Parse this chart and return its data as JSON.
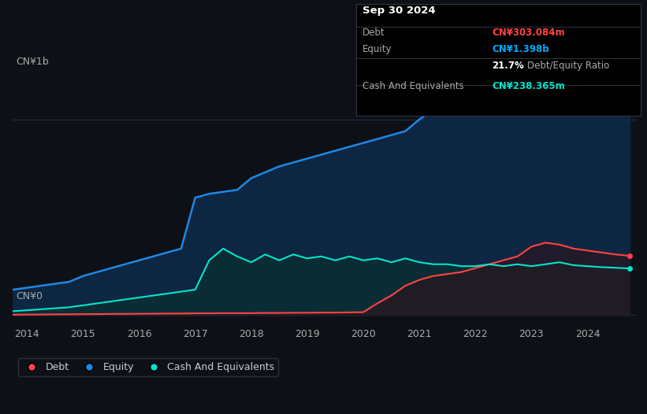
{
  "background_color": "#0d1117",
  "plot_bg_color": "#0d1117",
  "title_box": {
    "date": "Sep 30 2024",
    "debt_label": "Debt",
    "debt_value": "CN¥303.084m",
    "equity_label": "Equity",
    "equity_value": "CN¥1.398b",
    "ratio_value": "21.7%",
    "ratio_label": "Debt/Equity Ratio",
    "cash_label": "Cash And Equivalents",
    "cash_value": "CN¥238.365m"
  },
  "ylabel_top": "CN¥1b",
  "ylabel_bottom": "CN¥0",
  "x_ticks": [
    2014,
    2015,
    2016,
    2017,
    2018,
    2019,
    2020,
    2021,
    2022,
    2023,
    2024
  ],
  "legend": [
    {
      "label": "Debt",
      "color": "#ff4d4d"
    },
    {
      "label": "Equity",
      "color": "#00aaff"
    },
    {
      "label": "Cash And Equivalents",
      "color": "#00e5cc"
    }
  ],
  "equity_color": "#1e88e5",
  "equity_fill": "#1a3a5c",
  "debt_color": "#ff4444",
  "debt_fill": "#5c1a1a",
  "cash_color": "#00e5cc",
  "cash_fill": "#0d3d3a",
  "grid_color": "#2a3040",
  "years": [
    2013.75,
    2014.0,
    2014.25,
    2014.5,
    2014.75,
    2015.0,
    2015.25,
    2015.5,
    2015.75,
    2016.0,
    2016.25,
    2016.5,
    2016.75,
    2017.0,
    2017.25,
    2017.5,
    2017.75,
    2018.0,
    2018.25,
    2018.5,
    2018.75,
    2019.0,
    2019.25,
    2019.5,
    2019.75,
    2020.0,
    2020.25,
    2020.5,
    2020.75,
    2021.0,
    2021.25,
    2021.5,
    2021.75,
    2022.0,
    2022.25,
    2022.5,
    2022.75,
    2023.0,
    2023.25,
    2023.5,
    2023.75,
    2024.0,
    2024.25,
    2024.5,
    2024.75
  ],
  "equity": [
    0.13,
    0.14,
    0.15,
    0.16,
    0.17,
    0.2,
    0.22,
    0.24,
    0.26,
    0.28,
    0.3,
    0.32,
    0.34,
    0.6,
    0.62,
    0.63,
    0.64,
    0.7,
    0.73,
    0.76,
    0.78,
    0.8,
    0.82,
    0.84,
    0.86,
    0.88,
    0.9,
    0.92,
    0.94,
    1.0,
    1.05,
    1.1,
    1.15,
    1.25,
    1.3,
    1.32,
    1.35,
    1.37,
    1.38,
    1.37,
    1.36,
    1.37,
    1.38,
    1.38,
    1.398
  ],
  "debt": [
    0.002,
    0.003,
    0.003,
    0.004,
    0.004,
    0.005,
    0.005,
    0.006,
    0.006,
    0.007,
    0.007,
    0.008,
    0.008,
    0.009,
    0.009,
    0.01,
    0.01,
    0.01,
    0.011,
    0.011,
    0.012,
    0.012,
    0.013,
    0.013,
    0.014,
    0.015,
    0.06,
    0.1,
    0.15,
    0.18,
    0.2,
    0.21,
    0.22,
    0.24,
    0.26,
    0.28,
    0.3,
    0.35,
    0.37,
    0.36,
    0.34,
    0.33,
    0.32,
    0.31,
    0.303
  ],
  "cash": [
    0.02,
    0.025,
    0.03,
    0.035,
    0.04,
    0.05,
    0.06,
    0.07,
    0.08,
    0.09,
    0.1,
    0.11,
    0.12,
    0.13,
    0.28,
    0.34,
    0.3,
    0.27,
    0.31,
    0.28,
    0.31,
    0.29,
    0.3,
    0.28,
    0.3,
    0.28,
    0.29,
    0.27,
    0.29,
    0.27,
    0.26,
    0.26,
    0.25,
    0.25,
    0.26,
    0.25,
    0.26,
    0.25,
    0.26,
    0.27,
    0.255,
    0.25,
    0.245,
    0.242,
    0.238
  ]
}
